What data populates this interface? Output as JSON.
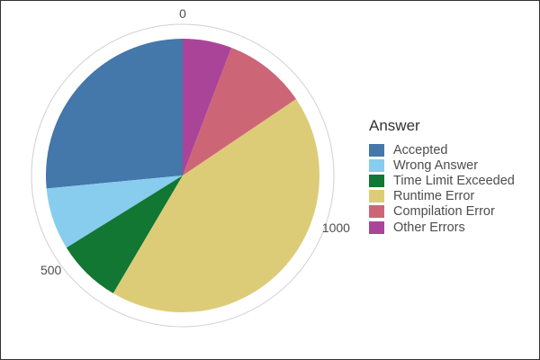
{
  "chart_data": {
    "type": "pie",
    "legend_title": "Answer",
    "legend_position": "right",
    "categories": [
      "Accepted",
      "Wrong Answer",
      "Time Limit Exceeded",
      "Runtime Error",
      "Compilation Error",
      "Other Errors"
    ],
    "values": [
      380,
      105,
      110,
      615,
      140,
      83
    ],
    "colors": [
      "#4477AA",
      "#88CCEE",
      "#117733",
      "#DDCC77",
      "#CC6677",
      "#AA4499"
    ],
    "radial_ticks": [
      {
        "value": 0,
        "label": "0"
      },
      {
        "value": 500,
        "label": "500"
      },
      {
        "value": 1000,
        "label": "1000"
      }
    ],
    "total": 1433
  }
}
